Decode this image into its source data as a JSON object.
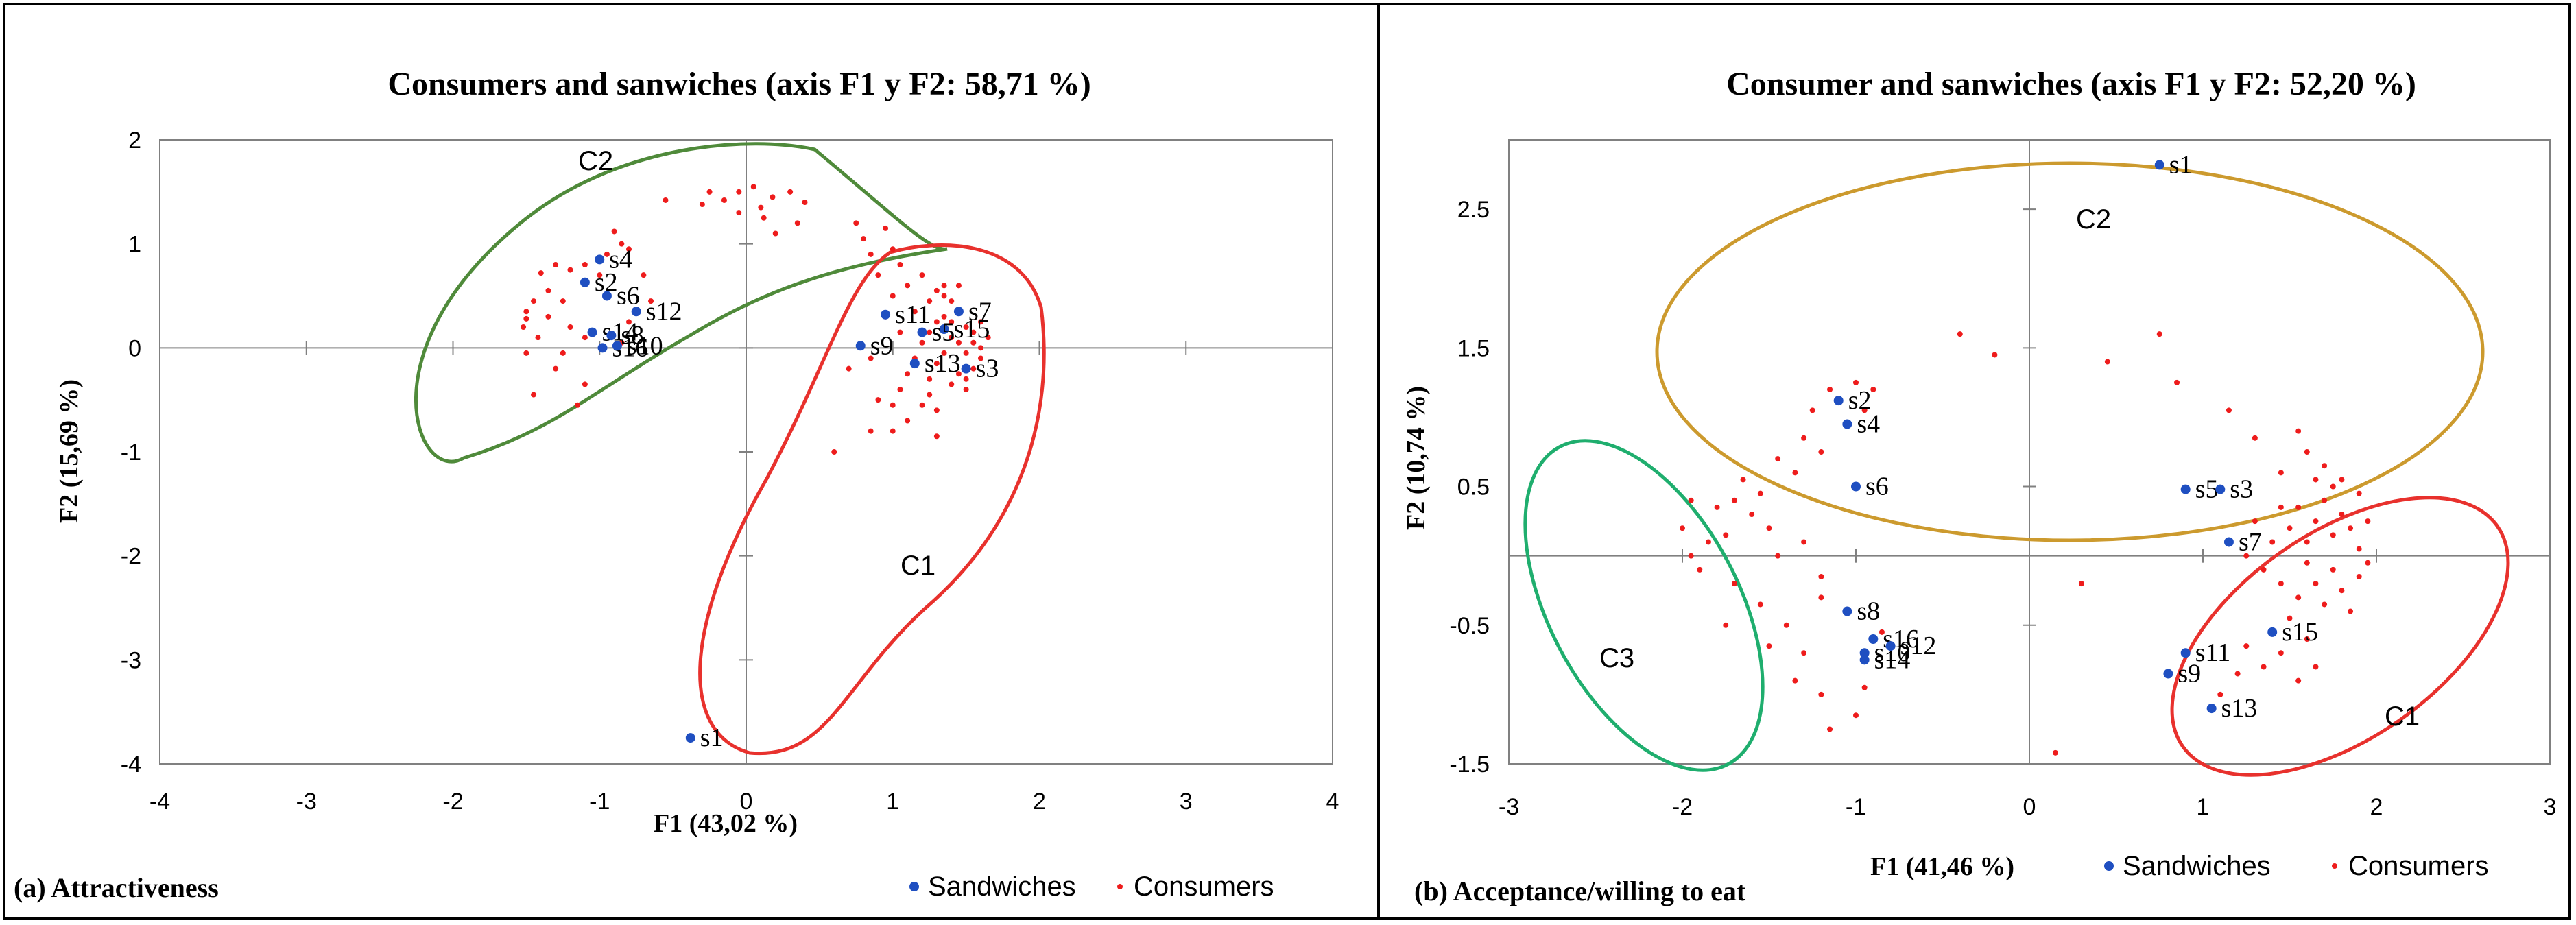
{
  "chart_data": [
    {
      "type": "scatter",
      "title": "Consumers and sanwiches (axis F1 y F2: 58,71 %)",
      "xlabel": "F1 (43,02 %)",
      "ylabel": "F2 (15,69 %)",
      "subtitle": "(a) Attractiveness",
      "xlim": [
        -4,
        4
      ],
      "ylim": [
        -4,
        2
      ],
      "xticks": [
        -4,
        -3,
        -2,
        -1,
        0,
        1,
        2,
        3,
        4
      ],
      "yticks": [
        2,
        1,
        0,
        -1,
        -2,
        -3,
        -4
      ],
      "xtick_labels": [
        "-4",
        "-3",
        "-2",
        "-1",
        "0",
        "1",
        "2",
        "3",
        "4"
      ],
      "ytick_labels": [
        "2",
        "1",
        "0",
        "-1",
        "-2",
        "-3",
        "-4"
      ],
      "legend": {
        "position": "bottom-right",
        "entries": [
          "Sandwiches",
          "Consumers"
        ]
      },
      "colors": {
        "sandwiches": "#1f4fc1",
        "consumers": "#ee1c1c",
        "C1": "#e8312d",
        "C2": "#4f8a3a"
      },
      "sandwiches": [
        {
          "label": "s1",
          "x": -0.38,
          "y": -3.75
        },
        {
          "label": "s2",
          "x": -1.1,
          "y": 0.63
        },
        {
          "label": "s4",
          "x": -1.0,
          "y": 0.85
        },
        {
          "label": "s6",
          "x": -0.95,
          "y": 0.5
        },
        {
          "label": "s12",
          "x": -0.75,
          "y": 0.35
        },
        {
          "label": "s14",
          "x": -1.05,
          "y": 0.15
        },
        {
          "label": "s8",
          "x": -0.92,
          "y": 0.12
        },
        {
          "label": "s16",
          "x": -0.98,
          "y": 0.0
        },
        {
          "label": "s10",
          "x": -0.88,
          "y": 0.02
        },
        {
          "label": "s7",
          "x": 1.45,
          "y": 0.35
        },
        {
          "label": "s11",
          "x": 0.95,
          "y": 0.32
        },
        {
          "label": "s15",
          "x": 1.35,
          "y": 0.18
        },
        {
          "label": "s5",
          "x": 1.2,
          "y": 0.15
        },
        {
          "label": "s9",
          "x": 0.78,
          "y": 0.02
        },
        {
          "label": "s13",
          "x": 1.15,
          "y": -0.15
        },
        {
          "label": "s3",
          "x": 1.5,
          "y": -0.2
        }
      ],
      "consumers": [
        [
          -0.3,
          1.38
        ],
        [
          -0.25,
          1.5
        ],
        [
          -0.15,
          1.42
        ],
        [
          -0.05,
          1.5
        ],
        [
          0.05,
          1.55
        ],
        [
          0.1,
          1.35
        ],
        [
          -0.05,
          1.3
        ],
        [
          0.18,
          1.45
        ],
        [
          0.3,
          1.5
        ],
        [
          0.35,
          1.2
        ],
        [
          0.4,
          1.4
        ],
        [
          0.12,
          1.25
        ],
        [
          0.2,
          1.1
        ],
        [
          -0.55,
          1.42
        ],
        [
          -0.85,
          1.0
        ],
        [
          -0.9,
          1.12
        ],
        [
          -0.95,
          0.9
        ],
        [
          -0.8,
          0.95
        ],
        [
          -1.2,
          0.75
        ],
        [
          -1.1,
          0.8
        ],
        [
          -1.0,
          0.7
        ],
        [
          -1.35,
          0.55
        ],
        [
          -1.3,
          0.8
        ],
        [
          -1.4,
          0.72
        ],
        [
          -1.45,
          0.45
        ],
        [
          -1.5,
          0.35
        ],
        [
          -1.52,
          0.2
        ],
        [
          -1.42,
          0.1
        ],
        [
          -1.5,
          0.28
        ],
        [
          -1.35,
          0.3
        ],
        [
          -1.25,
          0.45
        ],
        [
          -1.2,
          0.2
        ],
        [
          -1.1,
          0.1
        ],
        [
          -1.25,
          -0.05
        ],
        [
          -1.3,
          -0.2
        ],
        [
          -1.45,
          -0.45
        ],
        [
          -1.5,
          -0.05
        ],
        [
          -1.15,
          -0.55
        ],
        [
          -1.1,
          -0.35
        ],
        [
          -0.8,
          0.25
        ],
        [
          -0.85,
          0.05
        ],
        [
          -0.7,
          0.7
        ],
        [
          -0.65,
          0.45
        ],
        [
          0.75,
          1.2
        ],
        [
          0.8,
          1.05
        ],
        [
          0.85,
          0.9
        ],
        [
          0.95,
          1.15
        ],
        [
          1.0,
          0.95
        ],
        [
          1.05,
          0.8
        ],
        [
          0.9,
          0.7
        ],
        [
          1.1,
          0.6
        ],
        [
          1.2,
          0.7
        ],
        [
          1.0,
          0.5
        ],
        [
          0.95,
          0.3
        ],
        [
          1.05,
          0.15
        ],
        [
          1.15,
          0.35
        ],
        [
          1.25,
          0.45
        ],
        [
          1.3,
          0.25
        ],
        [
          1.35,
          0.3
        ],
        [
          1.4,
          0.1
        ],
        [
          1.45,
          0.05
        ],
        [
          1.5,
          -0.05
        ],
        [
          1.55,
          0.15
        ],
        [
          1.6,
          0.0
        ],
        [
          1.5,
          0.2
        ],
        [
          1.45,
          0.35
        ],
        [
          1.4,
          0.45
        ],
        [
          1.35,
          0.6
        ],
        [
          1.3,
          0.55
        ],
        [
          1.25,
          0.15
        ],
        [
          1.2,
          0.05
        ],
        [
          1.15,
          -0.1
        ],
        [
          1.1,
          -0.25
        ],
        [
          1.25,
          -0.3
        ],
        [
          1.3,
          -0.15
        ],
        [
          1.35,
          -0.05
        ],
        [
          1.45,
          -0.25
        ],
        [
          1.5,
          -0.3
        ],
        [
          1.55,
          -0.2
        ],
        [
          1.6,
          -0.1
        ],
        [
          1.55,
          0.05
        ],
        [
          1.4,
          0.25
        ],
        [
          1.35,
          0.5
        ],
        [
          1.45,
          0.6
        ],
        [
          1.25,
          -0.45
        ],
        [
          1.2,
          -0.55
        ],
        [
          1.3,
          -0.6
        ],
        [
          1.05,
          -0.4
        ],
        [
          1.0,
          -0.55
        ],
        [
          0.9,
          -0.5
        ],
        [
          1.0,
          -0.8
        ],
        [
          1.1,
          -0.7
        ],
        [
          1.3,
          -0.85
        ],
        [
          0.85,
          -0.8
        ],
        [
          0.6,
          -1.0
        ],
        [
          0.7,
          -0.2
        ],
        [
          0.85,
          -0.1
        ],
        [
          1.6,
          0.25
        ],
        [
          1.65,
          0.1
        ],
        [
          1.5,
          -0.4
        ],
        [
          1.4,
          -0.35
        ]
      ]
    },
    {
      "type": "scatter",
      "title": "Consumer and sanwiches (axis F1 y F2: 52,20 %)",
      "xlabel": "F1 (41,46 %)",
      "ylabel": "F2 (10,74 %)",
      "subtitle": "(b) Acceptance/willing to eat",
      "xlim": [
        -3,
        3
      ],
      "ylim": [
        -1.5,
        3.0
      ],
      "xticks": [
        -3,
        -2,
        -1,
        0,
        1,
        2,
        3
      ],
      "yticks": [
        2.5,
        1.5,
        0.5,
        -0.5,
        -1.5
      ],
      "xtick_labels": [
        "-3",
        "-2",
        "-1",
        "0",
        "1",
        "2",
        "3"
      ],
      "ytick_labels": [
        "2.5",
        "1.5",
        "0.5",
        "-0.5",
        "-1.5"
      ],
      "legend": {
        "position": "bottom-right",
        "entries": [
          "Sandwiches",
          "Consumers"
        ]
      },
      "colors": {
        "sandwiches": "#1f4fc1",
        "consumers": "#ee1c1c",
        "C1": "#e8312d",
        "C2": "#cc9a2e",
        "C3": "#1fae6e"
      },
      "sandwiches": [
        {
          "label": "s1",
          "x": 0.75,
          "y": 2.82
        },
        {
          "label": "s2",
          "x": -1.1,
          "y": 1.12
        },
        {
          "label": "s4",
          "x": -1.05,
          "y": 0.95
        },
        {
          "label": "s6",
          "x": -1.0,
          "y": 0.5
        },
        {
          "label": "s5",
          "x": 0.9,
          "y": 0.48
        },
        {
          "label": "s3",
          "x": 1.1,
          "y": 0.48
        },
        {
          "label": "s7",
          "x": 1.15,
          "y": 0.1
        },
        {
          "label": "s8",
          "x": -1.05,
          "y": -0.4
        },
        {
          "label": "s16",
          "x": -0.9,
          "y": -0.6
        },
        {
          "label": "s10",
          "x": -0.95,
          "y": -0.7
        },
        {
          "label": "s12",
          "x": -0.8,
          "y": -0.65
        },
        {
          "label": "s14",
          "x": -0.95,
          "y": -0.75
        },
        {
          "label": "s15",
          "x": 1.4,
          "y": -0.55
        },
        {
          "label": "s11",
          "x": 0.9,
          "y": -0.7
        },
        {
          "label": "s9",
          "x": 0.8,
          "y": -0.85
        },
        {
          "label": "s13",
          "x": 1.05,
          "y": -1.1
        }
      ],
      "consumers": [
        [
          -1.25,
          1.05
        ],
        [
          -1.15,
          1.2
        ],
        [
          -1.0,
          1.25
        ],
        [
          -0.95,
          1.05
        ],
        [
          -0.9,
          1.2
        ],
        [
          -1.3,
          0.85
        ],
        [
          -1.2,
          0.75
        ],
        [
          -1.35,
          0.6
        ],
        [
          -1.45,
          0.7
        ],
        [
          -1.55,
          0.45
        ],
        [
          -1.65,
          0.55
        ],
        [
          -1.7,
          0.4
        ],
        [
          -1.6,
          0.3
        ],
        [
          -1.5,
          0.2
        ],
        [
          -1.75,
          0.15
        ],
        [
          -1.85,
          0.1
        ],
        [
          -1.95,
          0.0
        ],
        [
          -1.9,
          -0.1
        ],
        [
          -1.8,
          0.35
        ],
        [
          -1.95,
          0.4
        ],
        [
          -1.7,
          -0.2
        ],
        [
          -1.55,
          -0.35
        ],
        [
          -1.4,
          -0.5
        ],
        [
          -1.3,
          -0.7
        ],
        [
          -1.5,
          -0.65
        ],
        [
          -1.75,
          -0.5
        ],
        [
          -1.35,
          -0.9
        ],
        [
          -1.2,
          -1.0
        ],
        [
          -1.15,
          -1.25
        ],
        [
          -1.0,
          -1.15
        ],
        [
          -0.95,
          -0.95
        ],
        [
          -0.85,
          -0.55
        ],
        [
          -1.2,
          -0.3
        ],
        [
          -1.45,
          0.0
        ],
        [
          -1.3,
          0.1
        ],
        [
          -1.2,
          -0.15
        ],
        [
          -2.0,
          0.2
        ],
        [
          -0.4,
          1.6
        ],
        [
          -0.2,
          1.45
        ],
        [
          0.45,
          1.4
        ],
        [
          0.75,
          1.6
        ],
        [
          0.85,
          1.25
        ],
        [
          1.15,
          1.05
        ],
        [
          1.3,
          0.85
        ],
        [
          1.45,
          0.6
        ],
        [
          1.5,
          0.2
        ],
        [
          1.55,
          0.35
        ],
        [
          1.6,
          0.1
        ],
        [
          1.65,
          0.25
        ],
        [
          1.7,
          0.4
        ],
        [
          1.75,
          0.15
        ],
        [
          1.8,
          0.3
        ],
        [
          1.85,
          0.2
        ],
        [
          1.9,
          0.05
        ],
        [
          1.95,
          0.25
        ],
        [
          1.6,
          -0.05
        ],
        [
          1.65,
          -0.2
        ],
        [
          1.7,
          -0.35
        ],
        [
          1.75,
          -0.1
        ],
        [
          1.8,
          -0.25
        ],
        [
          1.85,
          -0.4
        ],
        [
          1.9,
          -0.15
        ],
        [
          1.95,
          -0.05
        ],
        [
          1.55,
          -0.3
        ],
        [
          1.5,
          -0.45
        ],
        [
          1.6,
          -0.6
        ],
        [
          1.65,
          -0.8
        ],
        [
          1.55,
          -0.9
        ],
        [
          1.45,
          -0.7
        ],
        [
          1.35,
          -0.8
        ],
        [
          1.25,
          -0.65
        ],
        [
          1.2,
          -0.85
        ],
        [
          1.1,
          -1.0
        ],
        [
          1.75,
          0.5
        ],
        [
          1.7,
          0.65
        ],
        [
          1.6,
          0.75
        ],
        [
          1.55,
          0.9
        ],
        [
          1.65,
          0.55
        ],
        [
          1.45,
          0.35
        ],
        [
          1.4,
          0.1
        ],
        [
          1.3,
          0.25
        ],
        [
          1.25,
          0.0
        ],
        [
          1.35,
          -0.1
        ],
        [
          1.45,
          -0.2
        ],
        [
          1.8,
          0.55
        ],
        [
          1.9,
          0.45
        ],
        [
          0.3,
          -0.2
        ],
        [
          0.15,
          -1.42
        ]
      ]
    }
  ],
  "ellipse_labels": {
    "a": [
      "C2",
      "C1"
    ],
    "b": [
      "C2",
      "C3",
      "C1"
    ]
  }
}
